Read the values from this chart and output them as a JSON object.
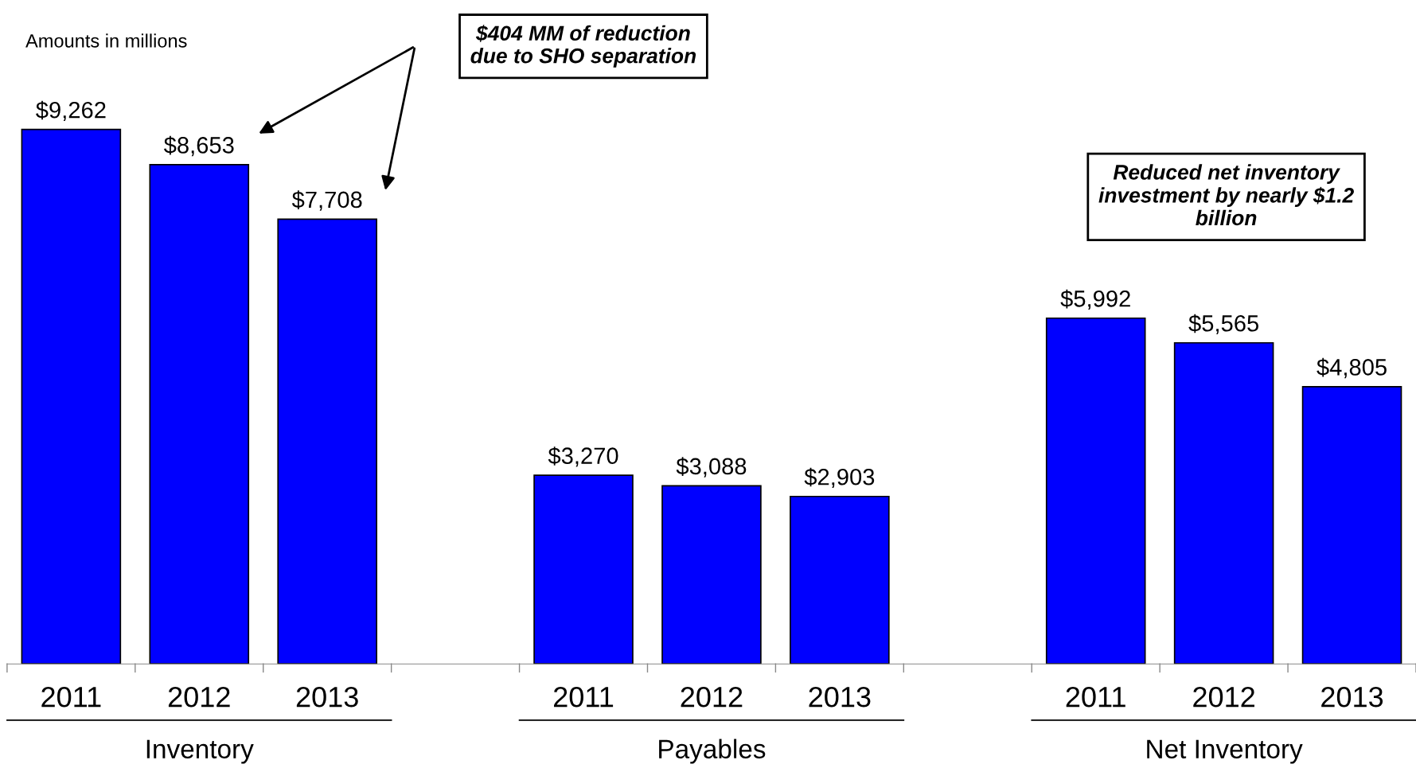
{
  "chart_data": {
    "type": "bar",
    "categories": [
      "2011",
      "2012",
      "2013",
      null,
      "2011",
      "2012",
      "2013",
      null,
      "2011",
      "2012",
      "2013"
    ],
    "values": [
      9262,
      8653,
      7708,
      null,
      3270,
      3088,
      2903,
      null,
      5992,
      5565,
      4805
    ],
    "value_labels": [
      "$9,262",
      "$8,653",
      "$7,708",
      null,
      "$3,270",
      "$3,088",
      "$2,903",
      null,
      "$5,992",
      "$5,565",
      "$4,805"
    ],
    "color": "#0000ff",
    "annotations": [
      "Amounts in millions",
      "$404 MM of reduction\ndue to SHO separation",
      "Reduced net inventory\ninvestment by nearly $1.2\nbillion",
      "Inventory",
      "Payables",
      "Net Inventory"
    ],
    "grid": false,
    "legend": false
  }
}
